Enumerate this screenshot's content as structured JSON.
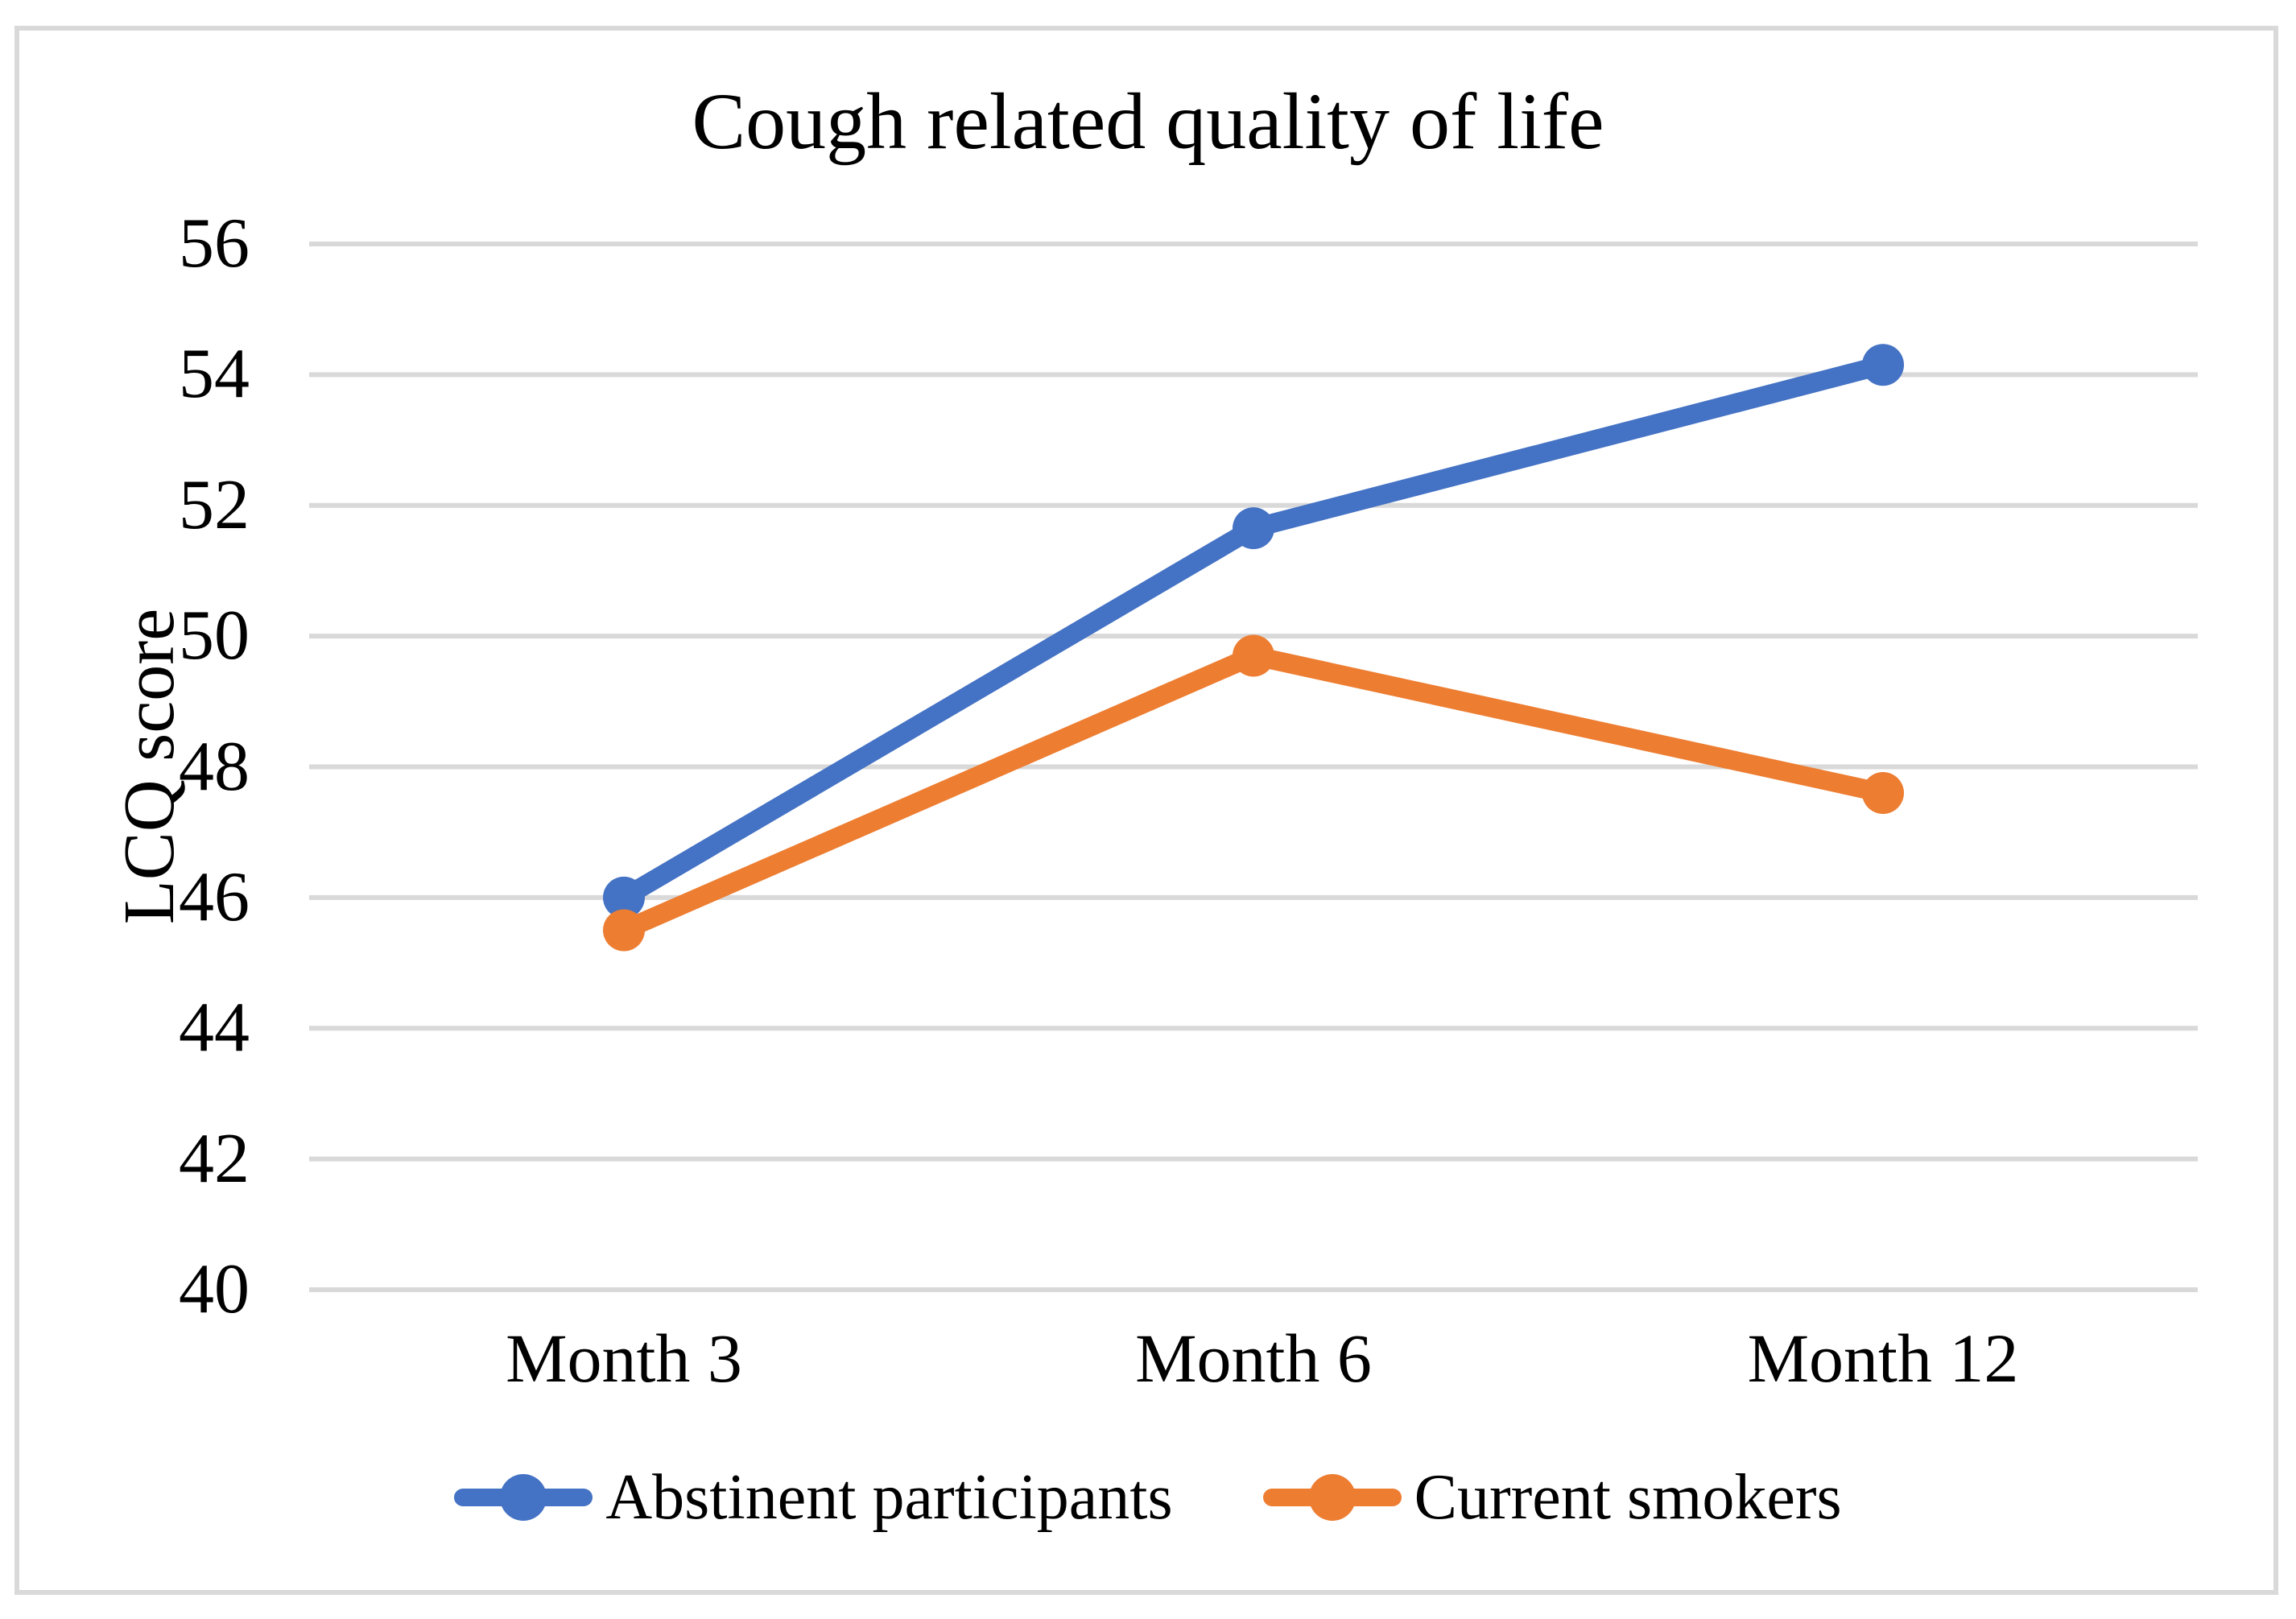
{
  "chart_data": {
    "type": "line",
    "title": "Cough related quality of life",
    "xlabel": "",
    "ylabel": "LCQ score",
    "categories": [
      "Month 3",
      "Month 6",
      "Month 12"
    ],
    "series": [
      {
        "name": "Abstinent participants",
        "color": "#4472C4",
        "values": [
          46.0,
          51.65,
          54.15
        ]
      },
      {
        "name": "Current smokers",
        "color": "#ED7D31",
        "values": [
          45.5,
          49.7,
          47.6
        ]
      }
    ],
    "ylim": [
      40,
      56
    ],
    "ytick_step": 2,
    "yticks": [
      40,
      42,
      44,
      46,
      48,
      50,
      52,
      54,
      56
    ],
    "grid": "horizontal-gridlines-on",
    "legend_position": "bottom",
    "marker": "circle",
    "colors": {
      "gridline": "#D9D9D9",
      "chart_border": "#D9D9D9",
      "text": "#000000",
      "background": "#FFFFFF"
    }
  }
}
